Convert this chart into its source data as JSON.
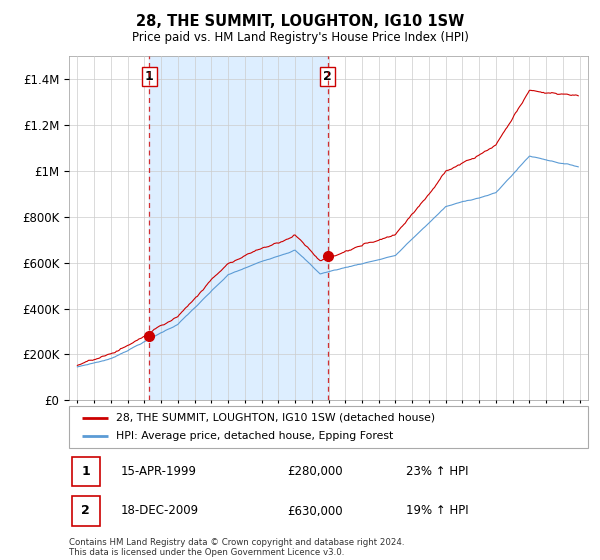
{
  "title": "28, THE SUMMIT, LOUGHTON, IG10 1SW",
  "subtitle": "Price paid vs. HM Land Registry's House Price Index (HPI)",
  "footnote": "Contains HM Land Registry data © Crown copyright and database right 2024.\nThis data is licensed under the Open Government Licence v3.0.",
  "legend_label_red": "28, THE SUMMIT, LOUGHTON, IG10 1SW (detached house)",
  "legend_label_blue": "HPI: Average price, detached house, Epping Forest",
  "sale1_date_str": "15-APR-1999",
  "sale1_price_str": "£280,000",
  "sale1_hpi_str": "23% ↑ HPI",
  "sale2_date_str": "18-DEC-2009",
  "sale2_price_str": "£630,000",
  "sale2_hpi_str": "19% ↑ HPI",
  "red_color": "#cc0000",
  "blue_color": "#5b9bd5",
  "shade_color": "#ddeeff",
  "grid_color": "#cccccc",
  "sale1_x": 1999.29,
  "sale2_x": 2009.96,
  "sale1_y": 280000,
  "sale2_y": 630000,
  "ylim": [
    0,
    1500000
  ],
  "xlim": [
    1994.5,
    2025.5
  ]
}
